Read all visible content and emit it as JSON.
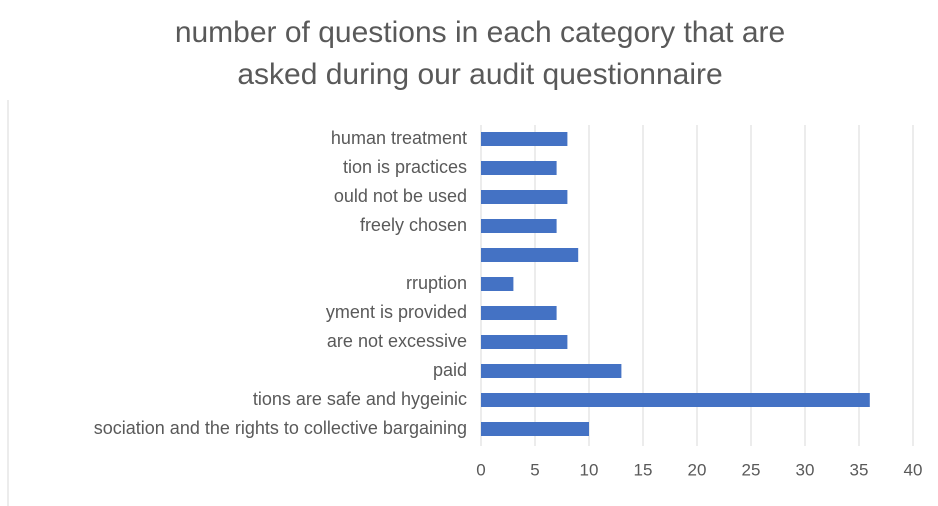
{
  "chart_data": {
    "type": "barh",
    "title": [
      "number of questions in each category that are",
      "asked during our audit questionnaire"
    ],
    "categories": [
      "human treatment",
      "tion is practices",
      "ould not be used",
      "freely chosen",
      null,
      "rruption",
      "yment is provided",
      "are not excessive",
      "paid",
      "tions are safe and hygeinic",
      "sociation and the rights to collective bargaining"
    ],
    "values": [
      8,
      7,
      8,
      7,
      9,
      3,
      7,
      8,
      13,
      36,
      10
    ],
    "color": "#4472c4",
    "xlim": [
      0,
      40
    ],
    "xticks": [
      0,
      5,
      10,
      15,
      20,
      25,
      30,
      35,
      40
    ],
    "grid": true
  }
}
